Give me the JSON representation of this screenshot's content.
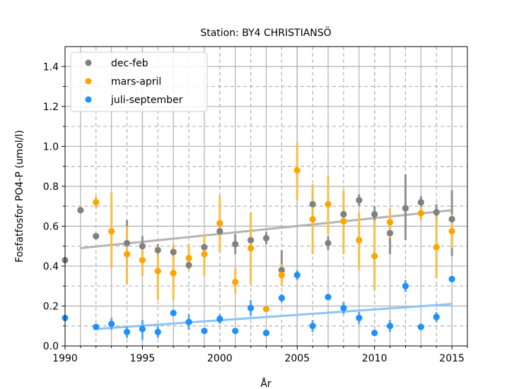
{
  "chart_data": {
    "type": "scatter",
    "title": "Station: BY4 CHRISTIANSÖ",
    "xlabel": "År",
    "ylabel": "Fosfatfosfor PO4-P (umol/l)",
    "xlim": [
      1990,
      2016
    ],
    "ylim": [
      0,
      1.5
    ],
    "xticks": [
      1990,
      1995,
      2000,
      2005,
      2010,
      2015
    ],
    "yticks": [
      0.0,
      0.2,
      0.4,
      0.6,
      0.8,
      1.0,
      1.2,
      1.4
    ],
    "grid": true,
    "legend_position": "top-left",
    "series": [
      {
        "name": "dec-feb",
        "color": "#808080",
        "points": [
          {
            "x": 1990,
            "y": 0.43,
            "lo": 0.43,
            "hi": 0.43
          },
          {
            "x": 1991,
            "y": 0.68,
            "lo": 0.68,
            "hi": 0.68
          },
          {
            "x": 1992,
            "y": 0.55,
            "lo": 0.55,
            "hi": 0.55
          },
          {
            "x": 1994,
            "y": 0.515,
            "lo": 0.4,
            "hi": 0.63
          },
          {
            "x": 1995,
            "y": 0.5,
            "lo": 0.45,
            "hi": 0.55
          },
          {
            "x": 1996,
            "y": 0.48,
            "lo": 0.45,
            "hi": 0.51
          },
          {
            "x": 1997,
            "y": 0.47,
            "lo": 0.44,
            "hi": 0.5
          },
          {
            "x": 1998,
            "y": 0.405,
            "lo": 0.38,
            "hi": 0.43
          },
          {
            "x": 1999,
            "y": 0.495,
            "lo": 0.46,
            "hi": 0.53
          },
          {
            "x": 2000,
            "y": 0.575,
            "lo": 0.53,
            "hi": 0.62
          },
          {
            "x": 2001,
            "y": 0.51,
            "lo": 0.46,
            "hi": 0.56
          },
          {
            "x": 2002,
            "y": 0.53,
            "lo": 0.48,
            "hi": 0.58
          },
          {
            "x": 2003,
            "y": 0.54,
            "lo": 0.51,
            "hi": 0.57
          },
          {
            "x": 2004,
            "y": 0.38,
            "lo": 0.32,
            "hi": 0.48
          },
          {
            "x": 2006,
            "y": 0.71,
            "lo": 0.67,
            "hi": 0.75
          },
          {
            "x": 2007,
            "y": 0.515,
            "lo": 0.48,
            "hi": 0.55
          },
          {
            "x": 2008,
            "y": 0.66,
            "lo": 0.61,
            "hi": 0.71
          },
          {
            "x": 2009,
            "y": 0.73,
            "lo": 0.7,
            "hi": 0.76
          },
          {
            "x": 2010,
            "y": 0.66,
            "lo": 0.62,
            "hi": 0.7
          },
          {
            "x": 2011,
            "y": 0.565,
            "lo": 0.46,
            "hi": 0.64
          },
          {
            "x": 2012,
            "y": 0.69,
            "lo": 0.53,
            "hi": 0.86
          },
          {
            "x": 2013,
            "y": 0.72,
            "lo": 0.69,
            "hi": 0.75
          },
          {
            "x": 2014,
            "y": 0.67,
            "lo": 0.63,
            "hi": 0.71
          },
          {
            "x": 2015,
            "y": 0.635,
            "lo": 0.45,
            "hi": 0.78
          }
        ],
        "trend": [
          [
            1991,
            0.49
          ],
          [
            2015,
            0.68
          ]
        ]
      },
      {
        "name": "mars-april",
        "color": "#FFA500",
        "points": [
          {
            "x": 1992,
            "y": 0.72,
            "lo": 0.69,
            "hi": 0.75
          },
          {
            "x": 1993,
            "y": 0.575,
            "lo": 0.39,
            "hi": 0.77
          },
          {
            "x": 1994,
            "y": 0.46,
            "lo": 0.31,
            "hi": 0.6
          },
          {
            "x": 1995,
            "y": 0.43,
            "lo": 0.35,
            "hi": 0.51
          },
          {
            "x": 1996,
            "y": 0.375,
            "lo": 0.23,
            "hi": 0.5
          },
          {
            "x": 1997,
            "y": 0.365,
            "lo": 0.23,
            "hi": 0.51
          },
          {
            "x": 1998,
            "y": 0.44,
            "lo": 0.38,
            "hi": 0.51
          },
          {
            "x": 1999,
            "y": 0.46,
            "lo": 0.35,
            "hi": 0.56
          },
          {
            "x": 2000,
            "y": 0.615,
            "lo": 0.47,
            "hi": 0.75
          },
          {
            "x": 2001,
            "y": 0.32,
            "lo": 0.26,
            "hi": 0.39
          },
          {
            "x": 2002,
            "y": 0.49,
            "lo": 0.31,
            "hi": 0.67
          },
          {
            "x": 2003,
            "y": 0.185,
            "lo": 0.17,
            "hi": 0.2
          },
          {
            "x": 2004,
            "y": 0.355,
            "lo": 0.3,
            "hi": 0.41
          },
          {
            "x": 2005,
            "y": 0.88,
            "lo": 0.73,
            "hi": 1.02
          },
          {
            "x": 2006,
            "y": 0.635,
            "lo": 0.46,
            "hi": 0.81
          },
          {
            "x": 2007,
            "y": 0.71,
            "lo": 0.56,
            "hi": 0.85
          },
          {
            "x": 2008,
            "y": 0.625,
            "lo": 0.46,
            "hi": 0.78
          },
          {
            "x": 2009,
            "y": 0.53,
            "lo": 0.38,
            "hi": 0.67
          },
          {
            "x": 2010,
            "y": 0.45,
            "lo": 0.28,
            "hi": 0.63
          },
          {
            "x": 2011,
            "y": 0.62,
            "lo": 0.54,
            "hi": 0.69
          },
          {
            "x": 2013,
            "y": 0.665,
            "lo": 0.63,
            "hi": 0.7
          },
          {
            "x": 2014,
            "y": 0.495,
            "lo": 0.34,
            "hi": 0.65
          },
          {
            "x": 2015,
            "y": 0.575,
            "lo": 0.49,
            "hi": 0.66
          }
        ]
      },
      {
        "name": "juli-september",
        "color": "#1E90FF",
        "points": [
          {
            "x": 1990,
            "y": 0.14,
            "lo": 0.14,
            "hi": 0.14
          },
          {
            "x": 1992,
            "y": 0.095,
            "lo": 0.09,
            "hi": 0.1
          },
          {
            "x": 1993,
            "y": 0.11,
            "lo": 0.08,
            "hi": 0.14
          },
          {
            "x": 1994,
            "y": 0.07,
            "lo": 0.04,
            "hi": 0.1
          },
          {
            "x": 1995,
            "y": 0.085,
            "lo": 0.03,
            "hi": 0.13
          },
          {
            "x": 1996,
            "y": 0.07,
            "lo": 0.04,
            "hi": 0.1
          },
          {
            "x": 1997,
            "y": 0.165,
            "lo": 0.15,
            "hi": 0.18
          },
          {
            "x": 1998,
            "y": 0.12,
            "lo": 0.08,
            "hi": 0.16
          },
          {
            "x": 1999,
            "y": 0.075,
            "lo": 0.06,
            "hi": 0.09
          },
          {
            "x": 2000,
            "y": 0.135,
            "lo": 0.11,
            "hi": 0.16
          },
          {
            "x": 2001,
            "y": 0.075,
            "lo": 0.06,
            "hi": 0.09
          },
          {
            "x": 2002,
            "y": 0.19,
            "lo": 0.15,
            "hi": 0.23
          },
          {
            "x": 2003,
            "y": 0.065,
            "lo": 0.05,
            "hi": 0.08
          },
          {
            "x": 2004,
            "y": 0.24,
            "lo": 0.22,
            "hi": 0.26
          },
          {
            "x": 2005,
            "y": 0.355,
            "lo": 0.33,
            "hi": 0.38
          },
          {
            "x": 2006,
            "y": 0.1,
            "lo": 0.07,
            "hi": 0.13
          },
          {
            "x": 2007,
            "y": 0.245,
            "lo": 0.23,
            "hi": 0.26
          },
          {
            "x": 2008,
            "y": 0.19,
            "lo": 0.16,
            "hi": 0.22
          },
          {
            "x": 2009,
            "y": 0.14,
            "lo": 0.11,
            "hi": 0.17
          },
          {
            "x": 2010,
            "y": 0.065,
            "lo": 0.05,
            "hi": 0.08
          },
          {
            "x": 2011,
            "y": 0.1,
            "lo": 0.07,
            "hi": 0.13
          },
          {
            "x": 2012,
            "y": 0.3,
            "lo": 0.27,
            "hi": 0.33
          },
          {
            "x": 2013,
            "y": 0.095,
            "lo": 0.08,
            "hi": 0.11
          },
          {
            "x": 2014,
            "y": 0.145,
            "lo": 0.12,
            "hi": 0.17
          },
          {
            "x": 2015,
            "y": 0.335,
            "lo": 0.32,
            "hi": 0.35
          }
        ],
        "trend": [
          [
            1992,
            0.085
          ],
          [
            2015,
            0.21
          ]
        ]
      }
    ]
  }
}
